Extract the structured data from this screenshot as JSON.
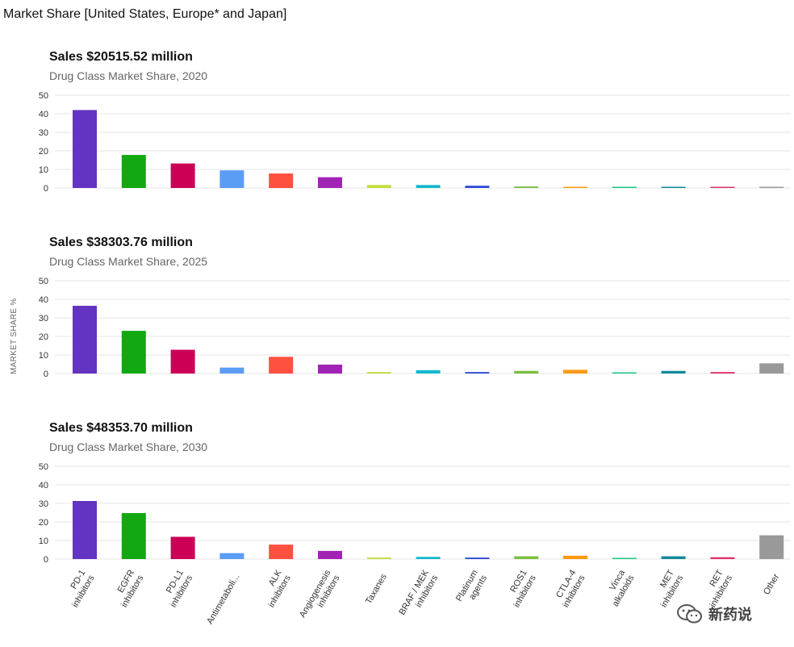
{
  "page_title": "Market Share [United States, Europe* and Japan]",
  "watermark_text": "新药说",
  "chart_data": {
    "type": "bar",
    "ylabel": "MARKET SHARE %",
    "ylim": [
      0,
      50
    ],
    "yticks": [
      0,
      10,
      20,
      30,
      40,
      50
    ],
    "categories": [
      [
        "PD-1",
        "inhibitors"
      ],
      [
        "EGFR",
        "inhibitors"
      ],
      [
        "PD-L1",
        "inhibitors"
      ],
      [
        "Antimetaboli..."
      ],
      [
        "ALK",
        "inhibitors"
      ],
      [
        "Angiogenesis",
        "inhibitors"
      ],
      [
        "Taxanes"
      ],
      [
        "BRAF / MEK",
        "inhibitors"
      ],
      [
        "Platinum",
        "agents"
      ],
      [
        "ROS1",
        "inhibitors"
      ],
      [
        "CTLA-4",
        "inhibitors"
      ],
      [
        "Vinca",
        "alkaloids"
      ],
      [
        "MET",
        "inhibitors"
      ],
      [
        "RET",
        "inhibitors"
      ],
      [
        "Other"
      ]
    ],
    "colors": [
      "#6234c1",
      "#12a812",
      "#cc0055",
      "#5b9cf5",
      "#ff5040",
      "#a024b4",
      "#c4dc3c",
      "#14b8d0",
      "#2c48d8",
      "#78c040",
      "#ff9a10",
      "#18c880",
      "#10889c",
      "#e0306c",
      "#999999"
    ],
    "panels": [
      {
        "title": "Sales $20515.52 million",
        "subtitle": "Drug Class Market Share, 2020",
        "values": [
          42,
          17.8,
          13.2,
          9.5,
          7.8,
          5.8,
          1.6,
          1.6,
          1.2,
          0.8,
          0.5,
          0.4,
          0.4,
          0.4,
          0.4
        ]
      },
      {
        "title": "Sales $38303.76 million",
        "subtitle": "Drug Class Market Share, 2025",
        "values": [
          36.5,
          23,
          12.8,
          3.2,
          9,
          4.8,
          0.8,
          1.8,
          0.8,
          1.4,
          2,
          0.5,
          1.4,
          0.8,
          5.5
        ]
      },
      {
        "title": "Sales $48353.70 million",
        "subtitle": "Drug Class Market Share, 2030",
        "values": [
          31.3,
          24.8,
          12,
          3.2,
          7.8,
          4.4,
          0.8,
          1.2,
          0.8,
          1.5,
          1.8,
          0.5,
          1.5,
          1,
          12.8
        ]
      }
    ]
  }
}
